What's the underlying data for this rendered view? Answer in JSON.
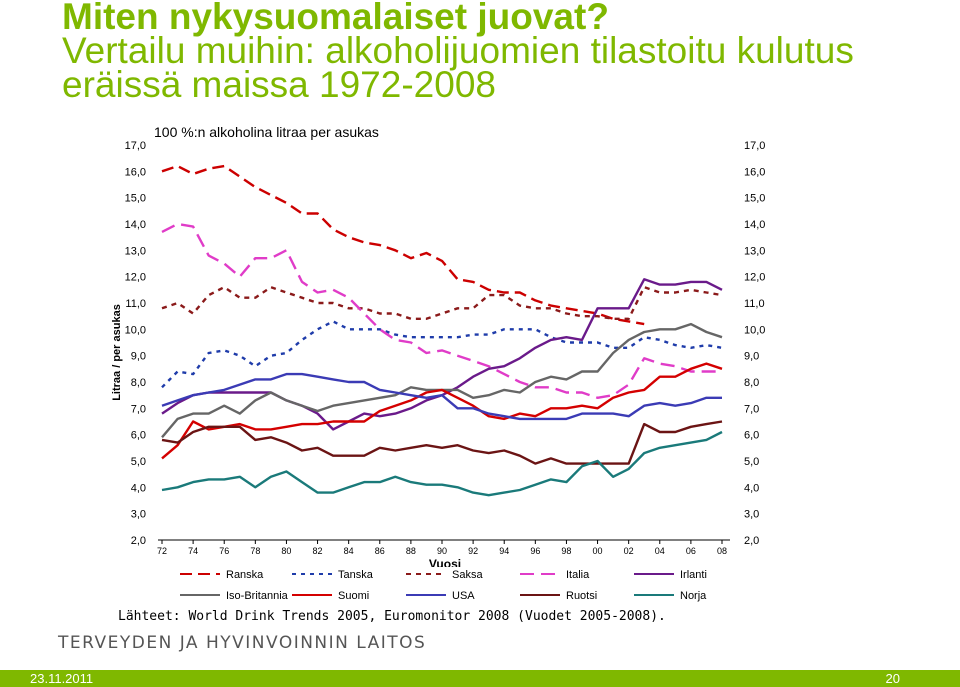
{
  "title": {
    "line1": "Miten nykysuomalaiset juovat?",
    "line2": "Vertailu muihin: alkoholijuomien tilastoitu kulutus",
    "line3": "eräissä maissa 1972-2008"
  },
  "source": "Lähteet: World Drink Trends 2005, Euromonitor 2008 (Vuodet 2005-2008).",
  "organization": "TERVEYDEN JA HYVINVOINNIN LAITOS",
  "footer": {
    "date": "23.11.2011",
    "page": "20"
  },
  "colors": {
    "accent": "#7fb800"
  },
  "chart_data": {
    "type": "line",
    "title": "100 %:n alkoholina litraa per asukas",
    "xlabel": "Vuosi",
    "ylabel": "Litraa / per asukas",
    "ylim": [
      2,
      17
    ],
    "y_ticks": [
      "2,0",
      "3,0",
      "4,0",
      "5,0",
      "6,0",
      "7,0",
      "8,0",
      "9,0",
      "10,0",
      "11,0",
      "12,0",
      "13,0",
      "14,0",
      "15,0",
      "16,0",
      "17,0"
    ],
    "x_ticks": [
      "72",
      "74",
      "76",
      "78",
      "80",
      "82",
      "84",
      "86",
      "88",
      "90",
      "92",
      "94",
      "96",
      "98",
      "00",
      "02",
      "04",
      "06",
      "08"
    ],
    "legend_position": "bottom",
    "x": [
      1972,
      1973,
      1974,
      1975,
      1976,
      1977,
      1978,
      1979,
      1980,
      1981,
      1982,
      1983,
      1984,
      1985,
      1986,
      1987,
      1988,
      1989,
      1990,
      1991,
      1992,
      1993,
      1994,
      1995,
      1996,
      1997,
      1998,
      1999,
      2000,
      2001,
      2002,
      2003,
      2004,
      2005,
      2006,
      2007,
      2008
    ],
    "series": [
      {
        "name": "Ranska",
        "color": "#cc0000",
        "dash": "dash",
        "values": [
          16.0,
          16.2,
          15.9,
          16.1,
          16.2,
          15.8,
          15.4,
          15.1,
          14.8,
          14.4,
          14.4,
          13.8,
          13.5,
          13.3,
          13.2,
          13.0,
          12.7,
          12.9,
          12.6,
          11.9,
          11.8,
          11.5,
          11.4,
          11.4,
          11.1,
          10.9,
          10.8,
          10.7,
          10.6,
          10.4,
          10.3,
          10.2,
          null,
          null,
          null,
          null,
          null
        ]
      },
      {
        "name": "Tanska",
        "color": "#1f3caa",
        "dash": "dot",
        "values": [
          7.8,
          8.4,
          8.3,
          9.1,
          9.2,
          9.0,
          8.6,
          9.0,
          9.1,
          9.6,
          10.0,
          10.3,
          10.0,
          10.0,
          10.0,
          9.8,
          9.7,
          9.7,
          9.7,
          9.7,
          9.8,
          9.8,
          10.0,
          10.0,
          10.0,
          9.7,
          9.5,
          9.5,
          9.5,
          9.3,
          9.3,
          9.7,
          9.6,
          9.4,
          9.3,
          9.4,
          9.3
        ]
      },
      {
        "name": "Saksa",
        "color": "#8b1a1a",
        "dash": "dash-dot",
        "values": [
          10.8,
          11.0,
          10.6,
          11.3,
          11.6,
          11.2,
          11.2,
          11.6,
          11.4,
          11.2,
          11.0,
          11.0,
          10.8,
          10.8,
          10.6,
          10.6,
          10.4,
          10.4,
          10.6,
          10.8,
          10.8,
          11.3,
          11.3,
          10.9,
          10.8,
          10.8,
          10.6,
          10.5,
          10.5,
          10.4,
          10.4,
          11.6,
          11.4,
          11.4,
          11.5,
          11.4,
          11.3
        ]
      },
      {
        "name": "Italia",
        "color": "#e03cc8",
        "dash": "long",
        "values": [
          13.7,
          14.0,
          13.9,
          12.8,
          12.5,
          12.0,
          12.7,
          12.7,
          13.0,
          11.8,
          11.4,
          11.5,
          11.2,
          10.6,
          10.0,
          9.6,
          9.5,
          9.1,
          9.2,
          9.0,
          8.8,
          8.6,
          8.3,
          8.0,
          7.8,
          7.8,
          7.6,
          7.6,
          7.4,
          7.5,
          7.9,
          8.9,
          8.7,
          8.6,
          8.4,
          8.4,
          8.4
        ]
      },
      {
        "name": "Irlanti",
        "color": "#6a1a8a",
        "dash": "solid",
        "values": [
          6.8,
          7.2,
          7.5,
          7.6,
          7.6,
          7.6,
          7.6,
          7.6,
          7.3,
          7.1,
          6.8,
          6.2,
          6.5,
          6.8,
          6.7,
          6.8,
          7.0,
          7.3,
          7.5,
          7.8,
          8.2,
          8.5,
          8.6,
          8.9,
          9.3,
          9.6,
          9.7,
          9.6,
          10.8,
          10.8,
          10.8,
          11.9,
          11.7,
          11.7,
          11.8,
          11.8,
          11.5
        ]
      },
      {
        "name": "Iso-Britannia",
        "color": "#666666",
        "dash": "solid",
        "values": [
          5.9,
          6.6,
          6.8,
          6.8,
          7.1,
          6.8,
          7.3,
          7.6,
          7.3,
          7.1,
          6.9,
          7.1,
          7.2,
          7.3,
          7.4,
          7.5,
          7.8,
          7.7,
          7.7,
          7.7,
          7.4,
          7.5,
          7.7,
          7.6,
          8.0,
          8.2,
          8.1,
          8.4,
          8.4,
          9.1,
          9.6,
          9.9,
          10.0,
          10.0,
          10.2,
          9.9,
          9.7
        ]
      },
      {
        "name": "Suomi",
        "color": "#d40000",
        "dash": "solid",
        "values": [
          5.1,
          5.6,
          6.5,
          6.2,
          6.3,
          6.4,
          6.2,
          6.2,
          6.3,
          6.4,
          6.4,
          6.5,
          6.5,
          6.5,
          6.9,
          7.1,
          7.3,
          7.6,
          7.7,
          7.4,
          7.1,
          6.7,
          6.6,
          6.8,
          6.7,
          7.0,
          7.0,
          7.1,
          7.0,
          7.4,
          7.6,
          7.7,
          8.2,
          8.2,
          8.5,
          8.7,
          8.5
        ]
      },
      {
        "name": "USA",
        "color": "#3b3bb5",
        "dash": "solid",
        "values": [
          7.1,
          7.3,
          7.5,
          7.6,
          7.7,
          7.9,
          8.1,
          8.1,
          8.3,
          8.3,
          8.2,
          8.1,
          8.0,
          8.0,
          7.7,
          7.6,
          7.5,
          7.4,
          7.5,
          7.0,
          7.0,
          6.8,
          6.7,
          6.6,
          6.6,
          6.6,
          6.6,
          6.8,
          6.8,
          6.8,
          6.7,
          7.1,
          7.2,
          7.1,
          7.2,
          7.4,
          7.4
        ]
      },
      {
        "name": "Ruotsi",
        "color": "#6b1414",
        "dash": "solid",
        "values": [
          5.8,
          5.7,
          6.1,
          6.3,
          6.3,
          6.3,
          5.8,
          5.9,
          5.7,
          5.4,
          5.5,
          5.2,
          5.2,
          5.2,
          5.5,
          5.4,
          5.5,
          5.6,
          5.5,
          5.6,
          5.4,
          5.3,
          5.4,
          5.2,
          4.9,
          5.1,
          4.9,
          4.9,
          4.9,
          4.9,
          4.9,
          6.4,
          6.1,
          6.1,
          6.3,
          6.4,
          6.5
        ]
      },
      {
        "name": "Norja",
        "color": "#1a7a7a",
        "dash": "solid",
        "values": [
          3.9,
          4.0,
          4.2,
          4.3,
          4.3,
          4.4,
          4.0,
          4.4,
          4.6,
          4.2,
          3.8,
          3.8,
          4.0,
          4.2,
          4.2,
          4.4,
          4.2,
          4.1,
          4.1,
          4.0,
          3.8,
          3.7,
          3.8,
          3.9,
          4.1,
          4.3,
          4.2,
          4.8,
          5.0,
          4.4,
          4.7,
          5.3,
          5.5,
          5.6,
          5.7,
          5.8,
          6.1
        ]
      }
    ]
  }
}
